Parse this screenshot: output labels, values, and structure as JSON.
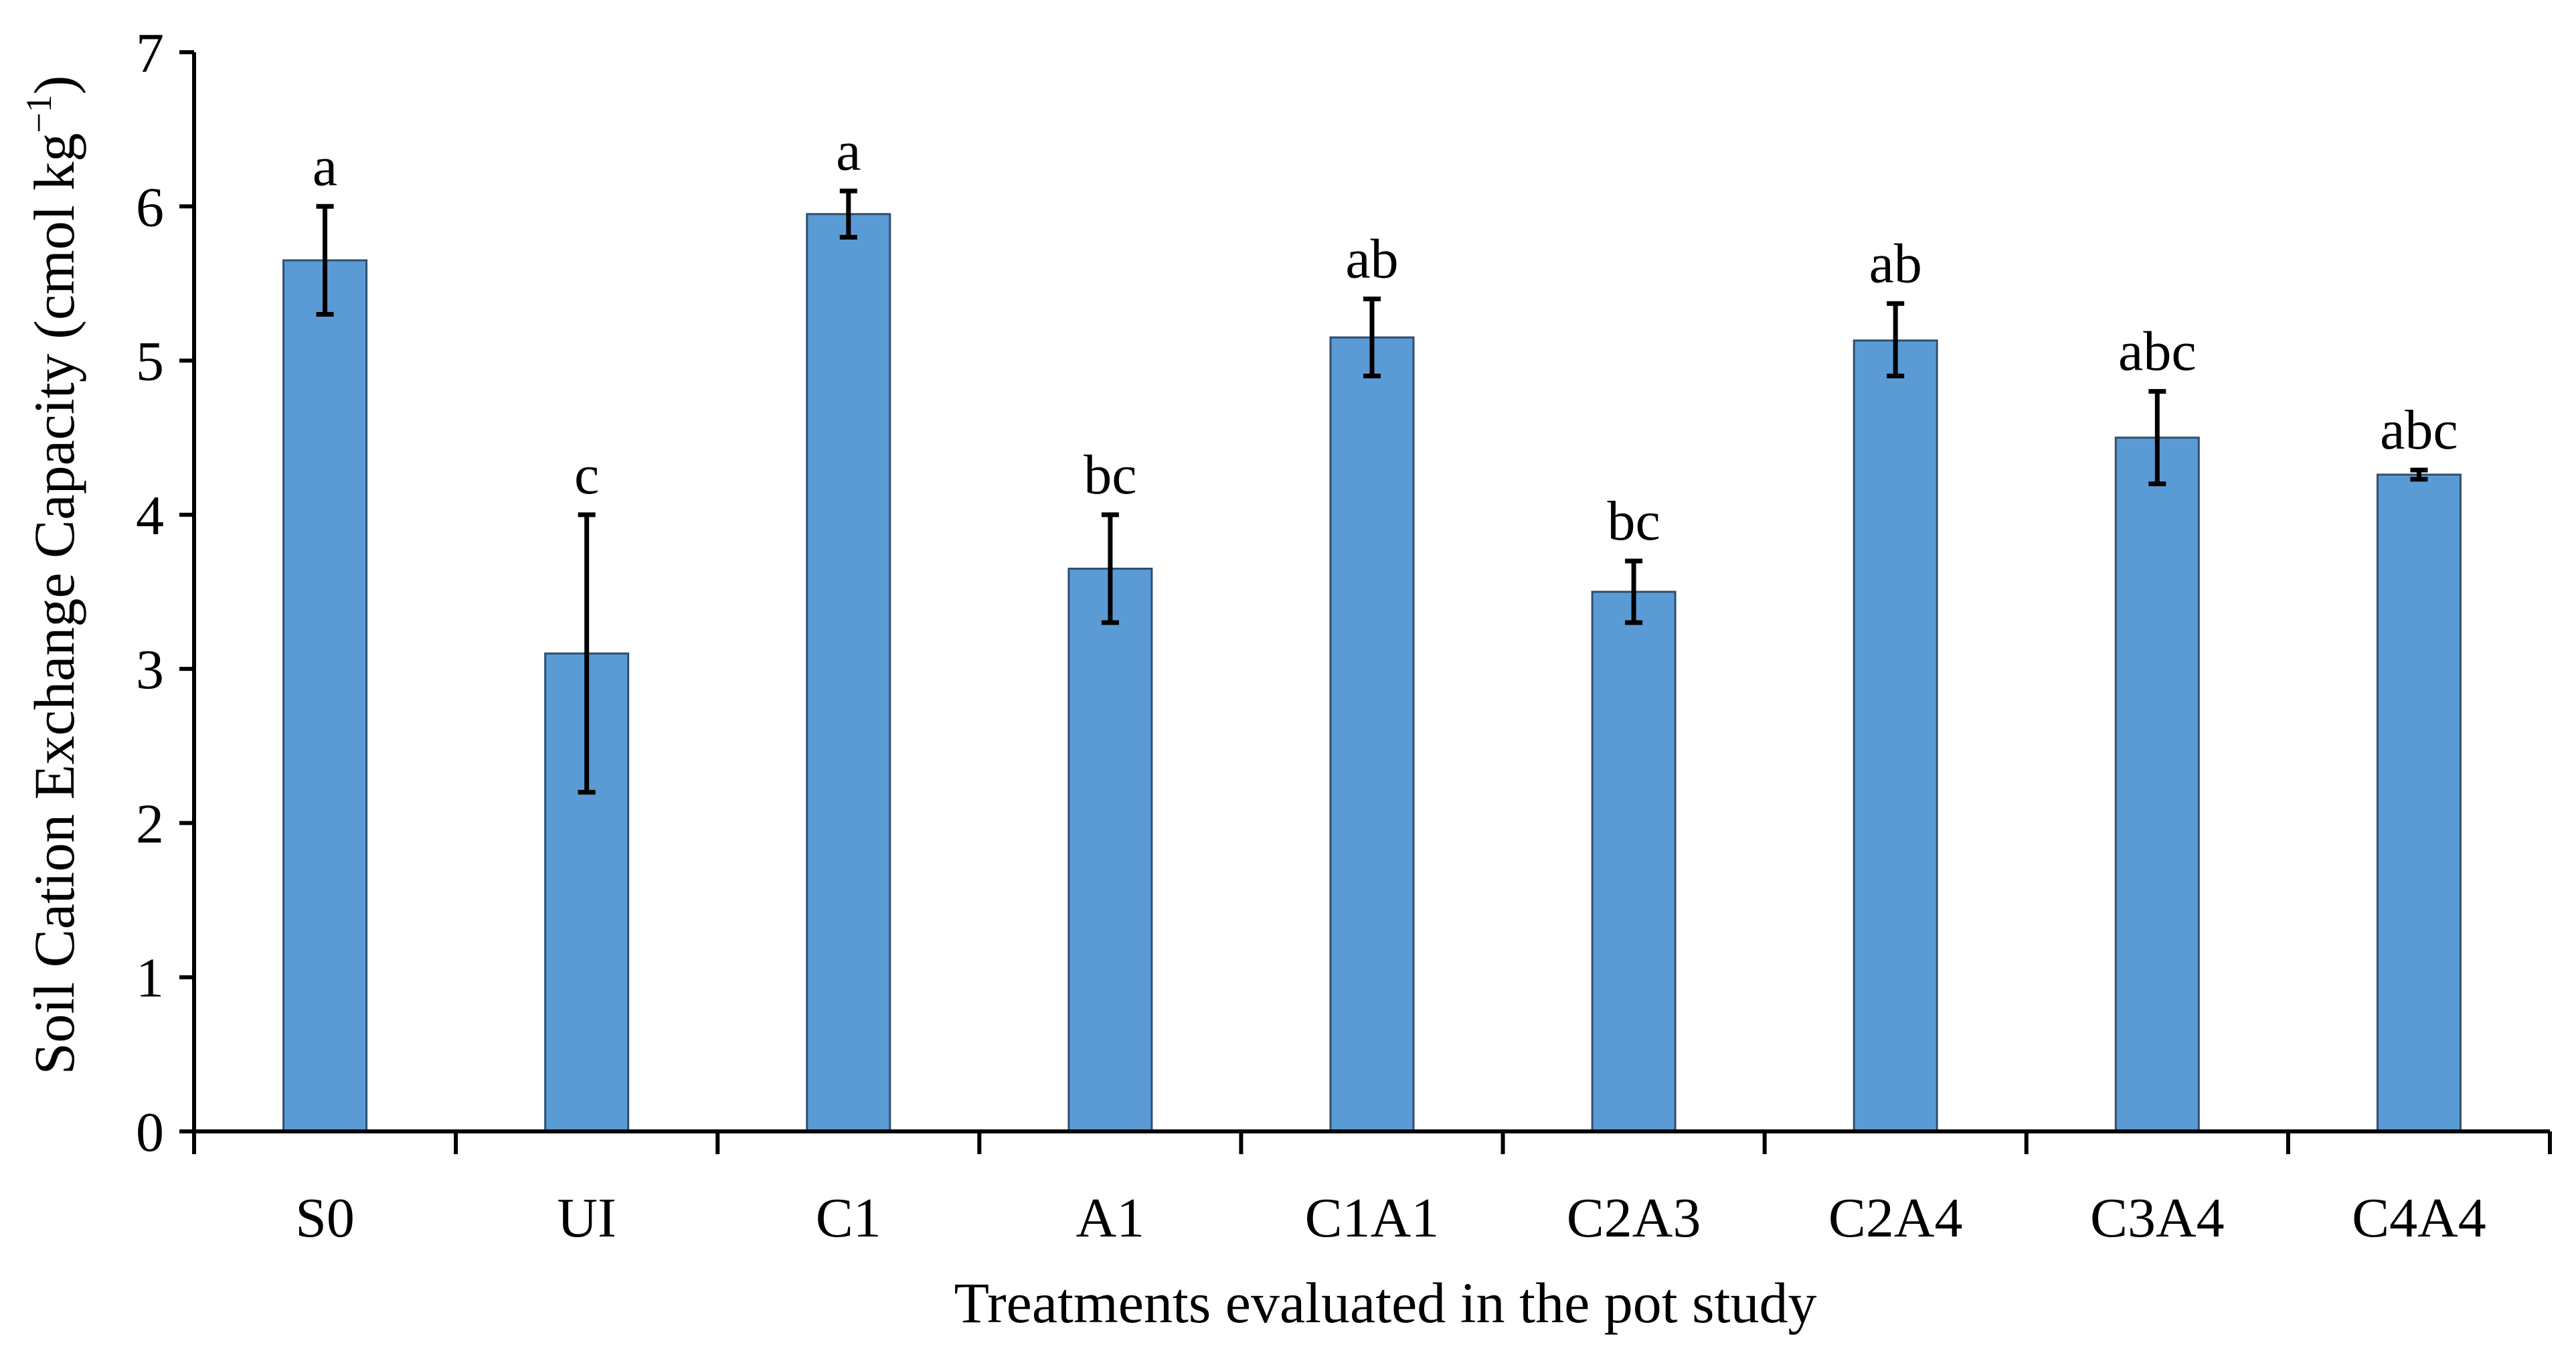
{
  "chart_data": {
    "type": "bar",
    "title": "",
    "xlabel": "Treatments evaluated in the pot study",
    "ylabel": "Soil Cation Exchange Capacity (cmol kg",
    "ylabel_unit_superscript": "−1",
    "ylabel_close": ")",
    "categories": [
      "S0",
      "UI",
      "C1",
      "A1",
      "C1A1",
      "C2A3",
      "C2A4",
      "C3A4",
      "C4A4"
    ],
    "values": [
      5.65,
      3.1,
      5.95,
      3.65,
      5.15,
      3.5,
      5.13,
      4.5,
      4.26
    ],
    "error_low": [
      5.3,
      2.2,
      5.8,
      3.3,
      4.9,
      3.3,
      4.9,
      4.2,
      4.23
    ],
    "error_high": [
      6.0,
      4.0,
      6.1,
      4.0,
      5.4,
      3.7,
      5.37,
      4.8,
      4.29
    ],
    "significance_letters": [
      "a",
      "c",
      "a",
      "bc",
      "ab",
      "bc",
      "ab",
      "abc",
      "abc"
    ],
    "ylim": [
      0,
      7
    ],
    "yticks": [
      0,
      1,
      2,
      3,
      4,
      5,
      6,
      7
    ],
    "ytick_labels": [
      "0",
      "1",
      "2",
      "3",
      "4",
      "5",
      "6",
      "7"
    ],
    "grid": false,
    "legend": "none",
    "bar_color": "#5B9BD5",
    "bar_edge_color": "#2F4F6F",
    "error_bar_color": "#000000",
    "axis_color": "#000000"
  }
}
